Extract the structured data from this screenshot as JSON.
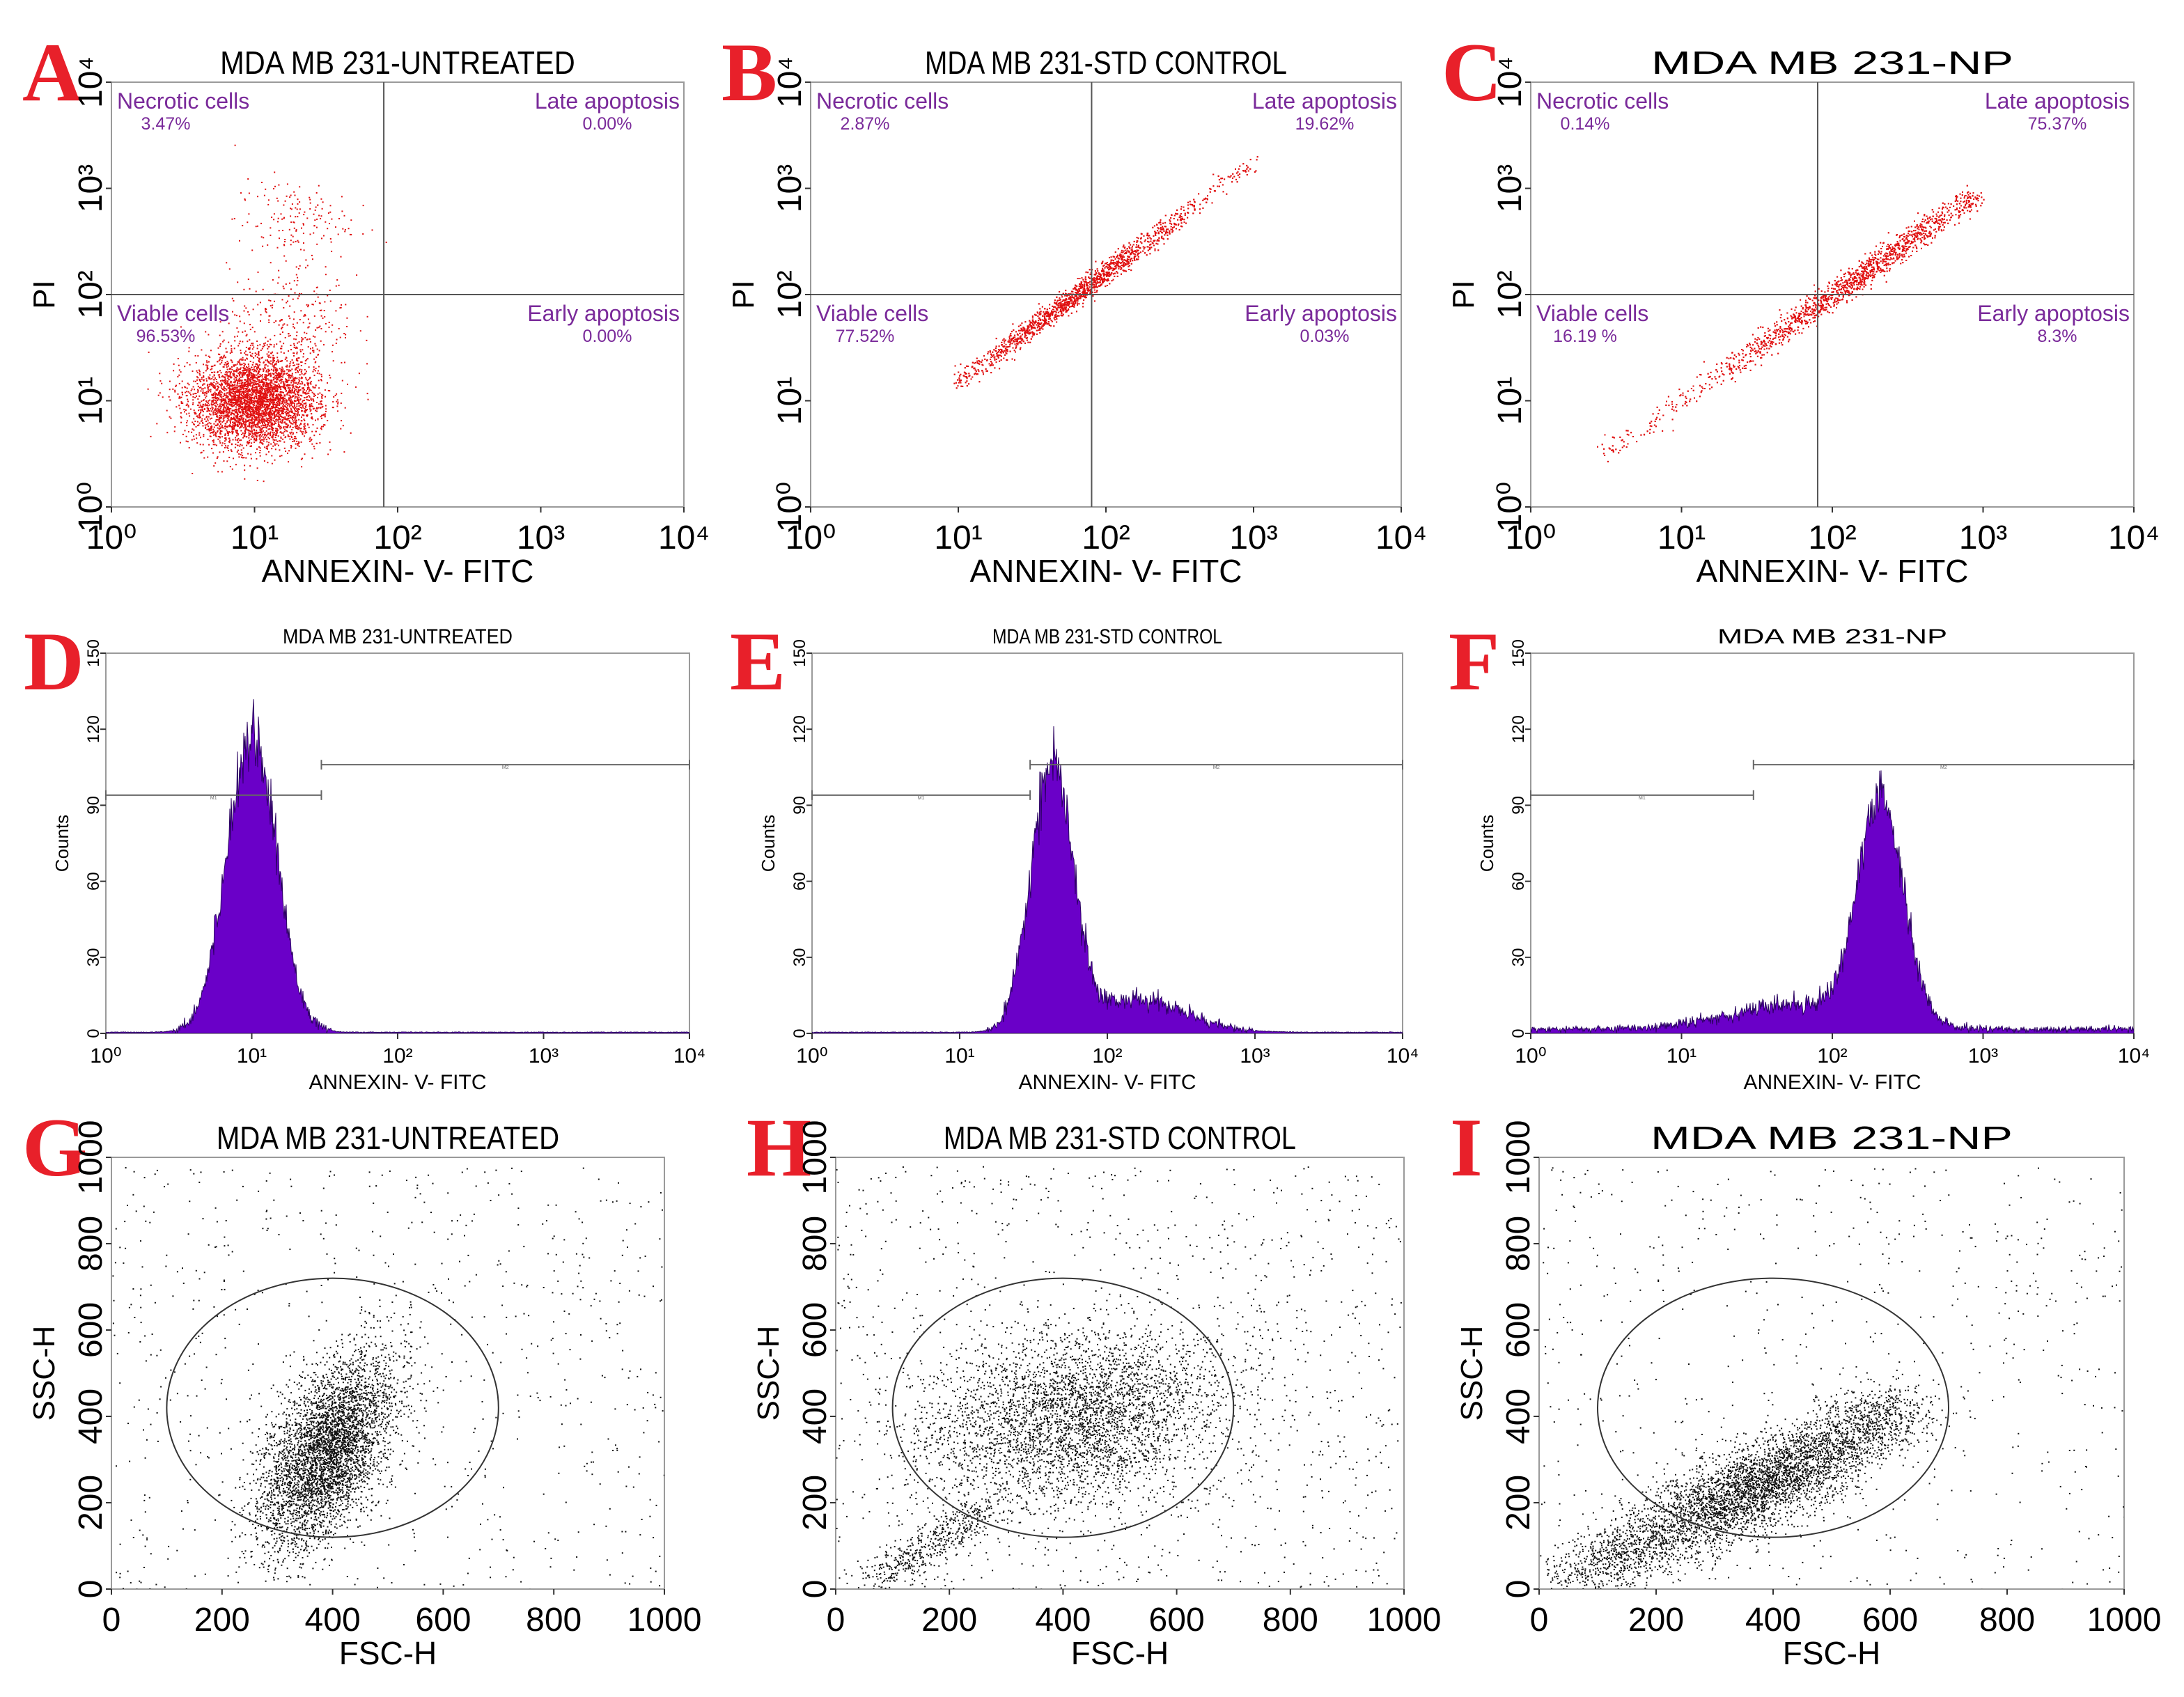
{
  "colors": {
    "panel_letter": "#e8202a",
    "quadrant_label": "#7a2a9a",
    "dot_red": "#e01010",
    "hist_fill": "#6a00c8",
    "dot_black": "#111111"
  },
  "chart_data": [
    {
      "id": "A",
      "type": "scatter",
      "title": "MDA MB 231-UNTREATED",
      "xlabel": "ANNEXIN- V- FITC",
      "ylabel": "PI",
      "xscale": "log",
      "yscale": "log",
      "xlim": [
        1,
        10000
      ],
      "ylim": [
        1,
        10000
      ],
      "xticks": [
        "10^0",
        "10^1",
        "10^2",
        "10^3",
        "10^4"
      ],
      "yticks": [
        "10^0",
        "10^1",
        "10^2",
        "10^3",
        "10^4"
      ],
      "quadrant_split": {
        "x": 80,
        "y": 100
      },
      "quadrants": [
        {
          "name": "Necrotic cells",
          "value": "3.47%",
          "position": "top-left"
        },
        {
          "name": "Late apoptosis",
          "value": "0.00%",
          "position": "top-right"
        },
        {
          "name": "Viable cells",
          "value": "96.53%",
          "position": "bottom-left"
        },
        {
          "name": "Early apoptosis",
          "value": "0.00%",
          "position": "bottom-right"
        }
      ],
      "populations": [
        {
          "kind": "blob",
          "x": 10,
          "y": 10,
          "sx": 0.22,
          "sy": 0.22,
          "n": 4000
        },
        {
          "kind": "blob",
          "x": 18,
          "y": 500,
          "sx": 0.2,
          "sy": 0.2,
          "n": 160
        },
        {
          "kind": "blob",
          "x": 18,
          "y": 60,
          "sx": 0.22,
          "sy": 0.25,
          "n": 250
        }
      ]
    },
    {
      "id": "B",
      "type": "scatter",
      "title": "MDA MB 231-STD CONTROL",
      "xlabel": "ANNEXIN- V- FITC",
      "ylabel": "PI",
      "xscale": "log",
      "yscale": "log",
      "xlim": [
        1,
        10000
      ],
      "ylim": [
        1,
        10000
      ],
      "xticks": [
        "10^0",
        "10^1",
        "10^2",
        "10^3",
        "10^4"
      ],
      "yticks": [
        "10^0",
        "10^1",
        "10^2",
        "10^3",
        "10^4"
      ],
      "quadrant_split": {
        "x": 80,
        "y": 100
      },
      "quadrants": [
        {
          "name": "Necrotic cells",
          "value": "2.87%",
          "position": "top-left"
        },
        {
          "name": "Late apoptosis",
          "value": "19.62%",
          "position": "top-right"
        },
        {
          "name": "Viable cells",
          "value": "77.52%",
          "position": "bottom-left"
        },
        {
          "name": "Early apoptosis",
          "value": "0.03%",
          "position": "bottom-right"
        }
      ],
      "populations": [
        {
          "kind": "diag",
          "x0": 10,
          "y0": 15,
          "x1": 1000,
          "y1": 1800,
          "n": 3000,
          "center": 60,
          "spread": 0.35,
          "jitter": 0.04
        }
      ]
    },
    {
      "id": "C",
      "type": "scatter",
      "title": "MDA MB 231-NP",
      "xlabel": "ANNEXIN- V- FITC",
      "ylabel": "PI",
      "xscale": "log",
      "yscale": "log",
      "xlim": [
        1,
        10000
      ],
      "ylim": [
        1,
        10000
      ],
      "xticks": [
        "10^0",
        "10^1",
        "10^2",
        "10^3",
        "10^4"
      ],
      "yticks": [
        "10^0",
        "10^1",
        "10^2",
        "10^3",
        "10^4"
      ],
      "quadrant_split": {
        "x": 80,
        "y": 100
      },
      "quadrants": [
        {
          "name": "Necrotic cells",
          "value": "0.14%",
          "position": "top-left"
        },
        {
          "name": "Late apoptosis",
          "value": "75.37%",
          "position": "top-right"
        },
        {
          "name": "Viable cells",
          "value": "16.19 %",
          "position": "bottom-left"
        },
        {
          "name": "Early apoptosis",
          "value": "8.3%",
          "position": "bottom-right"
        }
      ],
      "populations": [
        {
          "kind": "diag",
          "x0": 3,
          "y0": 3,
          "x1": 800,
          "y1": 800,
          "n": 3000,
          "center": 150,
          "spread": 0.45,
          "jitter": 0.05
        }
      ]
    },
    {
      "id": "D",
      "type": "histogram",
      "title": "MDA MB 231-UNTREATED",
      "xlabel": "ANNEXIN- V- FITC",
      "ylabel": "Counts",
      "xscale": "log",
      "xlim": [
        1,
        10000
      ],
      "ylim": [
        0,
        150
      ],
      "xticks": [
        "10^0",
        "10^1",
        "10^2",
        "10^3",
        "10^4"
      ],
      "yticks": [
        "0",
        "30",
        "60",
        "90",
        "120",
        "150"
      ],
      "gates": [
        {
          "from": 1,
          "to": 30,
          "level": 94,
          "label": "M1"
        },
        {
          "from": 30,
          "to": 10000,
          "level": 106,
          "label": "M2"
        }
      ],
      "peaks": [
        {
          "center": 10,
          "sigma": 0.17,
          "height": 118
        }
      ],
      "baseline": 0.3
    },
    {
      "id": "E",
      "type": "histogram",
      "title": "MDA MB 231-STD CONTROL",
      "xlabel": "ANNEXIN- V- FITC",
      "ylabel": "Counts",
      "xscale": "log",
      "xlim": [
        1,
        10000
      ],
      "ylim": [
        0,
        150
      ],
      "xticks": [
        "10^0",
        "10^1",
        "10^2",
        "10^3",
        "10^4"
      ],
      "yticks": [
        "0",
        "30",
        "60",
        "90",
        "120",
        "150"
      ],
      "gates": [
        {
          "from": 1,
          "to": 30,
          "level": 94,
          "label": "M1"
        },
        {
          "from": 30,
          "to": 10000,
          "level": 106,
          "label": "M2"
        }
      ],
      "peaks": [
        {
          "center": 42,
          "sigma": 0.14,
          "height": 104
        },
        {
          "center": 160,
          "sigma": 0.33,
          "height": 13
        }
      ],
      "baseline": 0.3
    },
    {
      "id": "F",
      "type": "histogram",
      "title": "MDA MB 231-NP",
      "xlabel": "ANNEXIN- V- FITC",
      "ylabel": "Counts",
      "xscale": "log",
      "xlim": [
        1,
        10000
      ],
      "ylim": [
        0,
        150
      ],
      "xticks": [
        "10^0",
        "10^1",
        "10^2",
        "10^3",
        "10^4"
      ],
      "yticks": [
        "0",
        "30",
        "60",
        "90",
        "120",
        "150"
      ],
      "gates": [
        {
          "from": 1,
          "to": 30,
          "level": 94,
          "label": "M1"
        },
        {
          "from": 30,
          "to": 10000,
          "level": 106,
          "label": "M2"
        }
      ],
      "peaks": [
        {
          "center": 210,
          "sigma": 0.15,
          "height": 87
        },
        {
          "center": 60,
          "sigma": 0.45,
          "height": 10
        }
      ],
      "baseline": 1.6
    },
    {
      "id": "G",
      "type": "scatter",
      "title": "MDA MB 231-UNTREATED",
      "xlabel": "FSC-H",
      "ylabel": "SSC-H",
      "xscale": "linear",
      "yscale": "linear",
      "xlim": [
        0,
        1000
      ],
      "ylim": [
        0,
        1000
      ],
      "xticks": [
        "0",
        "200",
        "400",
        "600",
        "800",
        "1000"
      ],
      "yticks": [
        "0",
        "200",
        "400",
        "600",
        "800",
        "1000"
      ],
      "gate_circle": {
        "cx": 400,
        "cy": 420,
        "r": 300
      },
      "populations": [
        {
          "kind": "blob",
          "x": 390,
          "y": 320,
          "sx": 60,
          "sy": 110,
          "rho": 0.55,
          "n": 4200
        },
        {
          "kind": "uniform",
          "n": 750
        }
      ]
    },
    {
      "id": "H",
      "type": "scatter",
      "title": "MDA MB 231-STD CONTROL",
      "xlabel": "FSC-H",
      "ylabel": "SSC-H",
      "xscale": "linear",
      "yscale": "linear",
      "xlim": [
        0,
        1000
      ],
      "ylim": [
        0,
        1000
      ],
      "xticks": [
        "0",
        "200",
        "400",
        "600",
        "800",
        "1000"
      ],
      "yticks": [
        "0",
        "200",
        "400",
        "600",
        "800",
        "1000"
      ],
      "gate_circle": {
        "cx": 400,
        "cy": 420,
        "r": 300
      },
      "populations": [
        {
          "kind": "blob",
          "x": 420,
          "y": 400,
          "sx": 130,
          "sy": 100,
          "rho": 0.2,
          "n": 3600
        },
        {
          "kind": "line",
          "x0": 60,
          "y0": 20,
          "x1": 260,
          "y1": 180,
          "n": 500,
          "jitter": 22
        },
        {
          "kind": "uniform",
          "n": 1100
        }
      ]
    },
    {
      "id": "I",
      "type": "scatter",
      "title": "MDA MB 231-NP",
      "xlabel": "FSC-H",
      "ylabel": "SSC-H",
      "xscale": "linear",
      "yscale": "linear",
      "xlim": [
        0,
        1000
      ],
      "ylim": [
        0,
        1000
      ],
      "xticks": [
        "0",
        "200",
        "400",
        "600",
        "800",
        "1000"
      ],
      "yticks": [
        "0",
        "200",
        "400",
        "600",
        "800",
        "1000"
      ],
      "gate_circle": {
        "cx": 400,
        "cy": 420,
        "r": 300
      },
      "populations": [
        {
          "kind": "line",
          "x0": 60,
          "y0": 20,
          "x1": 620,
          "y1": 420,
          "n": 3200,
          "jitter": 38
        },
        {
          "kind": "blob",
          "x": 380,
          "y": 240,
          "sx": 90,
          "sy": 70,
          "rho": 0.6,
          "n": 1500
        },
        {
          "kind": "uniform",
          "n": 650
        }
      ]
    }
  ]
}
